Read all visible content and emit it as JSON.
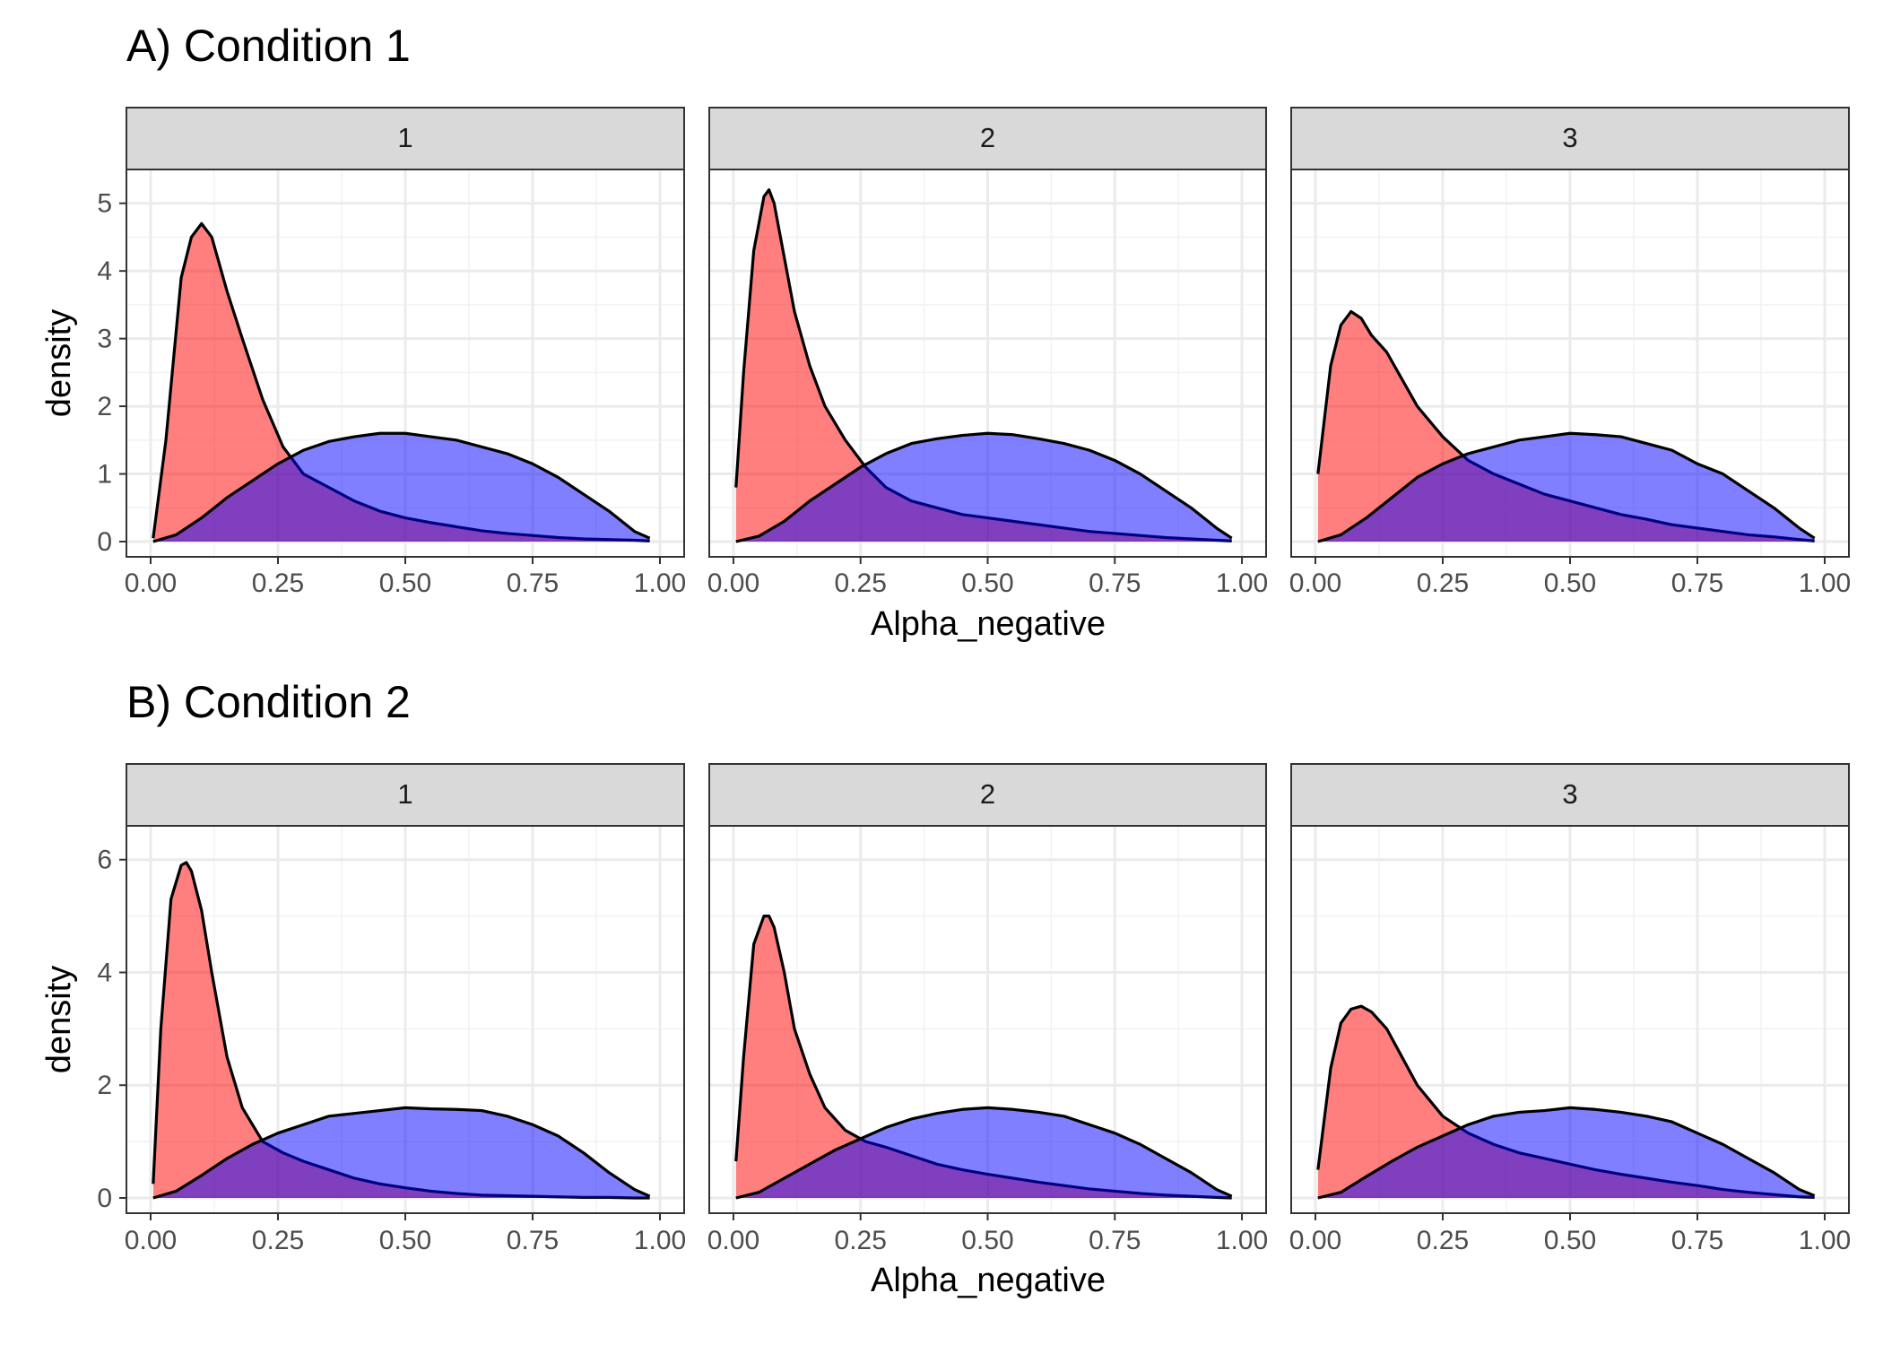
{
  "chart_data": [
    {
      "type": "area",
      "title": "A) Condition 1",
      "xlabel": "Alpha_negative",
      "ylabel": "density",
      "xlim": [
        0,
        1
      ],
      "ylim": [
        0,
        5.5
      ],
      "xticks": [
        "0.00",
        "0.25",
        "0.50",
        "0.75",
        "1.00"
      ],
      "yticks": [
        "0",
        "1",
        "2",
        "3",
        "4",
        "5"
      ],
      "ytick_values": [
        0,
        1,
        2,
        3,
        4,
        5
      ],
      "grid": true,
      "series_colors": [
        "#ff0000",
        "#0000ff"
      ],
      "panels": [
        {
          "label": "1",
          "series": [
            {
              "x": [
                0.005,
                0.03,
                0.06,
                0.08,
                0.1,
                0.12,
                0.15,
                0.18,
                0.22,
                0.26,
                0.3,
                0.35,
                0.4,
                0.45,
                0.5,
                0.55,
                0.6,
                0.65,
                0.7,
                0.75,
                0.8,
                0.85,
                0.9,
                0.95,
                0.98
              ],
              "values": [
                0.05,
                1.5,
                3.9,
                4.5,
                4.7,
                4.5,
                3.7,
                3.0,
                2.1,
                1.4,
                1.0,
                0.8,
                0.6,
                0.45,
                0.35,
                0.28,
                0.22,
                0.16,
                0.12,
                0.09,
                0.06,
                0.04,
                0.03,
                0.02,
                0.01
              ]
            },
            {
              "x": [
                0.005,
                0.05,
                0.1,
                0.15,
                0.2,
                0.25,
                0.3,
                0.35,
                0.4,
                0.45,
                0.5,
                0.55,
                0.6,
                0.65,
                0.7,
                0.75,
                0.8,
                0.85,
                0.9,
                0.95,
                0.98
              ],
              "values": [
                0.0,
                0.1,
                0.35,
                0.65,
                0.9,
                1.15,
                1.35,
                1.48,
                1.55,
                1.6,
                1.6,
                1.55,
                1.5,
                1.4,
                1.3,
                1.15,
                0.95,
                0.7,
                0.45,
                0.15,
                0.05
              ]
            }
          ]
        },
        {
          "label": "2",
          "series": [
            {
              "x": [
                0.005,
                0.02,
                0.04,
                0.06,
                0.07,
                0.08,
                0.1,
                0.12,
                0.15,
                0.18,
                0.22,
                0.26,
                0.3,
                0.35,
                0.4,
                0.45,
                0.5,
                0.55,
                0.6,
                0.65,
                0.7,
                0.75,
                0.8,
                0.85,
                0.9,
                0.95,
                0.98
              ],
              "values": [
                0.8,
                2.5,
                4.3,
                5.1,
                5.2,
                5.0,
                4.2,
                3.4,
                2.6,
                2.0,
                1.5,
                1.1,
                0.8,
                0.6,
                0.5,
                0.4,
                0.35,
                0.3,
                0.25,
                0.2,
                0.15,
                0.12,
                0.09,
                0.06,
                0.04,
                0.02,
                0.01
              ]
            },
            {
              "x": [
                0.005,
                0.05,
                0.1,
                0.15,
                0.2,
                0.25,
                0.3,
                0.35,
                0.4,
                0.45,
                0.5,
                0.55,
                0.6,
                0.65,
                0.7,
                0.75,
                0.8,
                0.85,
                0.9,
                0.95,
                0.98
              ],
              "values": [
                0.0,
                0.08,
                0.3,
                0.6,
                0.85,
                1.1,
                1.3,
                1.45,
                1.52,
                1.57,
                1.6,
                1.58,
                1.52,
                1.45,
                1.35,
                1.2,
                1.0,
                0.75,
                0.5,
                0.2,
                0.05
              ]
            }
          ]
        },
        {
          "label": "3",
          "series": [
            {
              "x": [
                0.005,
                0.03,
                0.05,
                0.07,
                0.09,
                0.11,
                0.14,
                0.17,
                0.2,
                0.25,
                0.3,
                0.35,
                0.4,
                0.45,
                0.5,
                0.55,
                0.6,
                0.65,
                0.7,
                0.75,
                0.8,
                0.85,
                0.9,
                0.95,
                0.98
              ],
              "values": [
                1.0,
                2.6,
                3.2,
                3.4,
                3.3,
                3.05,
                2.8,
                2.4,
                2.0,
                1.55,
                1.2,
                1.0,
                0.85,
                0.7,
                0.6,
                0.5,
                0.4,
                0.33,
                0.25,
                0.2,
                0.15,
                0.1,
                0.07,
                0.03,
                0.01
              ]
            },
            {
              "x": [
                0.005,
                0.05,
                0.1,
                0.15,
                0.2,
                0.25,
                0.3,
                0.35,
                0.4,
                0.45,
                0.5,
                0.55,
                0.6,
                0.65,
                0.7,
                0.75,
                0.8,
                0.85,
                0.9,
                0.95,
                0.98
              ],
              "values": [
                0.0,
                0.1,
                0.35,
                0.65,
                0.95,
                1.15,
                1.3,
                1.4,
                1.5,
                1.55,
                1.6,
                1.58,
                1.55,
                1.45,
                1.35,
                1.15,
                1.0,
                0.75,
                0.5,
                0.2,
                0.05
              ]
            }
          ]
        }
      ]
    },
    {
      "type": "area",
      "title": "B) Condition 2",
      "xlabel": "Alpha_negative",
      "ylabel": "density",
      "xlim": [
        0,
        1
      ],
      "ylim": [
        0,
        6.6
      ],
      "xticks": [
        "0.00",
        "0.25",
        "0.50",
        "0.75",
        "1.00"
      ],
      "yticks": [
        "0",
        "2",
        "4",
        "6"
      ],
      "ytick_values": [
        0,
        2,
        4,
        6
      ],
      "grid": true,
      "series_colors": [
        "#ff0000",
        "#0000ff"
      ],
      "panels": [
        {
          "label": "1",
          "series": [
            {
              "x": [
                0.005,
                0.02,
                0.04,
                0.06,
                0.07,
                0.08,
                0.1,
                0.12,
                0.15,
                0.18,
                0.22,
                0.26,
                0.3,
                0.35,
                0.4,
                0.45,
                0.5,
                0.55,
                0.6,
                0.65,
                0.7,
                0.75,
                0.8,
                0.85,
                0.9,
                0.95,
                0.98
              ],
              "values": [
                0.25,
                3.0,
                5.3,
                5.9,
                5.95,
                5.8,
                5.1,
                4.0,
                2.5,
                1.6,
                1.0,
                0.8,
                0.65,
                0.5,
                0.35,
                0.25,
                0.18,
                0.12,
                0.08,
                0.05,
                0.04,
                0.03,
                0.02,
                0.01,
                0.01,
                0.0,
                0.0
              ]
            },
            {
              "x": [
                0.005,
                0.05,
                0.1,
                0.15,
                0.2,
                0.25,
                0.3,
                0.35,
                0.4,
                0.45,
                0.5,
                0.55,
                0.6,
                0.65,
                0.7,
                0.75,
                0.8,
                0.85,
                0.9,
                0.95,
                0.98
              ],
              "values": [
                0.0,
                0.12,
                0.4,
                0.7,
                0.95,
                1.15,
                1.3,
                1.45,
                1.5,
                1.55,
                1.6,
                1.58,
                1.57,
                1.55,
                1.45,
                1.3,
                1.1,
                0.8,
                0.45,
                0.15,
                0.03
              ]
            }
          ]
        },
        {
          "label": "2",
          "series": [
            {
              "x": [
                0.005,
                0.02,
                0.04,
                0.06,
                0.07,
                0.08,
                0.1,
                0.12,
                0.15,
                0.18,
                0.22,
                0.26,
                0.3,
                0.35,
                0.4,
                0.45,
                0.5,
                0.55,
                0.6,
                0.65,
                0.7,
                0.75,
                0.8,
                0.85,
                0.9,
                0.95,
                0.98
              ],
              "values": [
                0.65,
                2.5,
                4.5,
                5.0,
                5.0,
                4.8,
                4.0,
                3.0,
                2.2,
                1.6,
                1.2,
                1.0,
                0.9,
                0.75,
                0.6,
                0.5,
                0.42,
                0.35,
                0.28,
                0.22,
                0.16,
                0.12,
                0.08,
                0.05,
                0.03,
                0.01,
                0.0
              ]
            },
            {
              "x": [
                0.005,
                0.05,
                0.1,
                0.15,
                0.2,
                0.25,
                0.3,
                0.35,
                0.4,
                0.45,
                0.5,
                0.55,
                0.6,
                0.65,
                0.7,
                0.75,
                0.8,
                0.85,
                0.9,
                0.95,
                0.98
              ],
              "values": [
                0.0,
                0.1,
                0.35,
                0.6,
                0.85,
                1.05,
                1.25,
                1.4,
                1.5,
                1.57,
                1.6,
                1.57,
                1.52,
                1.45,
                1.3,
                1.15,
                0.95,
                0.7,
                0.45,
                0.15,
                0.03
              ]
            }
          ]
        },
        {
          "label": "3",
          "series": [
            {
              "x": [
                0.005,
                0.03,
                0.05,
                0.07,
                0.09,
                0.11,
                0.14,
                0.17,
                0.2,
                0.25,
                0.3,
                0.35,
                0.4,
                0.45,
                0.5,
                0.55,
                0.6,
                0.65,
                0.7,
                0.75,
                0.8,
                0.85,
                0.9,
                0.95,
                0.98
              ],
              "values": [
                0.5,
                2.3,
                3.1,
                3.35,
                3.4,
                3.3,
                3.0,
                2.5,
                2.0,
                1.45,
                1.15,
                0.95,
                0.8,
                0.7,
                0.6,
                0.5,
                0.42,
                0.35,
                0.28,
                0.22,
                0.15,
                0.1,
                0.06,
                0.02,
                0.01
              ]
            },
            {
              "x": [
                0.005,
                0.05,
                0.1,
                0.15,
                0.2,
                0.25,
                0.3,
                0.35,
                0.4,
                0.45,
                0.5,
                0.55,
                0.6,
                0.65,
                0.7,
                0.75,
                0.8,
                0.85,
                0.9,
                0.95,
                0.98
              ],
              "values": [
                0.0,
                0.1,
                0.38,
                0.65,
                0.9,
                1.1,
                1.3,
                1.45,
                1.52,
                1.55,
                1.6,
                1.57,
                1.52,
                1.45,
                1.35,
                1.15,
                0.95,
                0.7,
                0.45,
                0.15,
                0.04
              ]
            }
          ]
        }
      ]
    }
  ]
}
